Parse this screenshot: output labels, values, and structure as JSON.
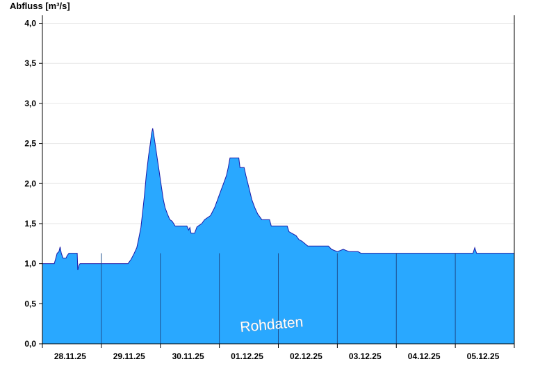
{
  "chart_data": {
    "type": "area",
    "ylabel": "Abfluss [m³/s]",
    "ylim": [
      0,
      4.1
    ],
    "yticks": [
      "0,0",
      "0,5",
      "1,0",
      "1,5",
      "2,0",
      "2,5",
      "3,0",
      "3,5",
      "4,0"
    ],
    "ytick_values": [
      0,
      0.5,
      1.0,
      1.5,
      2.0,
      2.5,
      3.0,
      3.5,
      4.0
    ],
    "xlim_days": [
      0,
      8
    ],
    "xticks": [
      "28.11.25",
      "29.11.25",
      "30.11.25",
      "01.12.25",
      "02.12.25",
      "03.12.25",
      "04.12.25",
      "05.12.25"
    ],
    "grid": true,
    "colors": {
      "fill": "#29a8ff",
      "line": "#1a1aa8",
      "day_divider": "#1f4f8f",
      "grid": "#e6e6e6"
    },
    "annotation": "Rohdaten",
    "series": [
      {
        "points": [
          [
            0.0,
            1.0
          ],
          [
            0.2,
            1.0
          ],
          [
            0.22,
            1.05
          ],
          [
            0.25,
            1.13
          ],
          [
            0.28,
            1.15
          ],
          [
            0.3,
            1.21
          ],
          [
            0.32,
            1.13
          ],
          [
            0.35,
            1.07
          ],
          [
            0.4,
            1.07
          ],
          [
            0.42,
            1.1
          ],
          [
            0.45,
            1.13
          ],
          [
            0.55,
            1.13
          ],
          [
            0.59,
            1.13
          ],
          [
            0.6,
            0.92
          ],
          [
            0.62,
            0.98
          ],
          [
            0.64,
            1.0
          ],
          [
            1.45,
            1.0
          ],
          [
            1.5,
            1.05
          ],
          [
            1.55,
            1.12
          ],
          [
            1.6,
            1.2
          ],
          [
            1.63,
            1.3
          ],
          [
            1.67,
            1.45
          ],
          [
            1.7,
            1.65
          ],
          [
            1.73,
            1.85
          ],
          [
            1.76,
            2.1
          ],
          [
            1.8,
            2.35
          ],
          [
            1.83,
            2.5
          ],
          [
            1.85,
            2.62
          ],
          [
            1.87,
            2.69
          ],
          [
            1.89,
            2.6
          ],
          [
            1.92,
            2.45
          ],
          [
            1.95,
            2.3
          ],
          [
            1.98,
            2.15
          ],
          [
            2.02,
            1.95
          ],
          [
            2.05,
            1.8
          ],
          [
            2.08,
            1.7
          ],
          [
            2.12,
            1.62
          ],
          [
            2.16,
            1.55
          ],
          [
            2.2,
            1.53
          ],
          [
            2.25,
            1.47
          ],
          [
            2.45,
            1.47
          ],
          [
            2.48,
            1.42
          ],
          [
            2.5,
            1.45
          ],
          [
            2.52,
            1.38
          ],
          [
            2.58,
            1.38
          ],
          [
            2.62,
            1.46
          ],
          [
            2.7,
            1.5
          ],
          [
            2.75,
            1.55
          ],
          [
            2.85,
            1.6
          ],
          [
            2.92,
            1.7
          ],
          [
            2.97,
            1.8
          ],
          [
            3.02,
            1.9
          ],
          [
            3.07,
            2.0
          ],
          [
            3.12,
            2.1
          ],
          [
            3.15,
            2.2
          ],
          [
            3.18,
            2.32
          ],
          [
            3.33,
            2.32
          ],
          [
            3.35,
            2.2
          ],
          [
            3.42,
            2.2
          ],
          [
            3.45,
            2.1
          ],
          [
            3.5,
            1.95
          ],
          [
            3.55,
            1.8
          ],
          [
            3.6,
            1.7
          ],
          [
            3.65,
            1.62
          ],
          [
            3.72,
            1.55
          ],
          [
            3.85,
            1.55
          ],
          [
            3.88,
            1.47
          ],
          [
            4.15,
            1.47
          ],
          [
            4.18,
            1.4
          ],
          [
            4.3,
            1.35
          ],
          [
            4.35,
            1.3
          ],
          [
            4.4,
            1.28
          ],
          [
            4.45,
            1.25
          ],
          [
            4.5,
            1.22
          ],
          [
            4.85,
            1.22
          ],
          [
            4.9,
            1.18
          ],
          [
            5.0,
            1.15
          ],
          [
            5.1,
            1.18
          ],
          [
            5.2,
            1.15
          ],
          [
            5.35,
            1.15
          ],
          [
            5.4,
            1.13
          ],
          [
            7.3,
            1.13
          ],
          [
            7.33,
            1.2
          ],
          [
            7.36,
            1.13
          ],
          [
            8.0,
            1.13
          ]
        ]
      }
    ]
  }
}
